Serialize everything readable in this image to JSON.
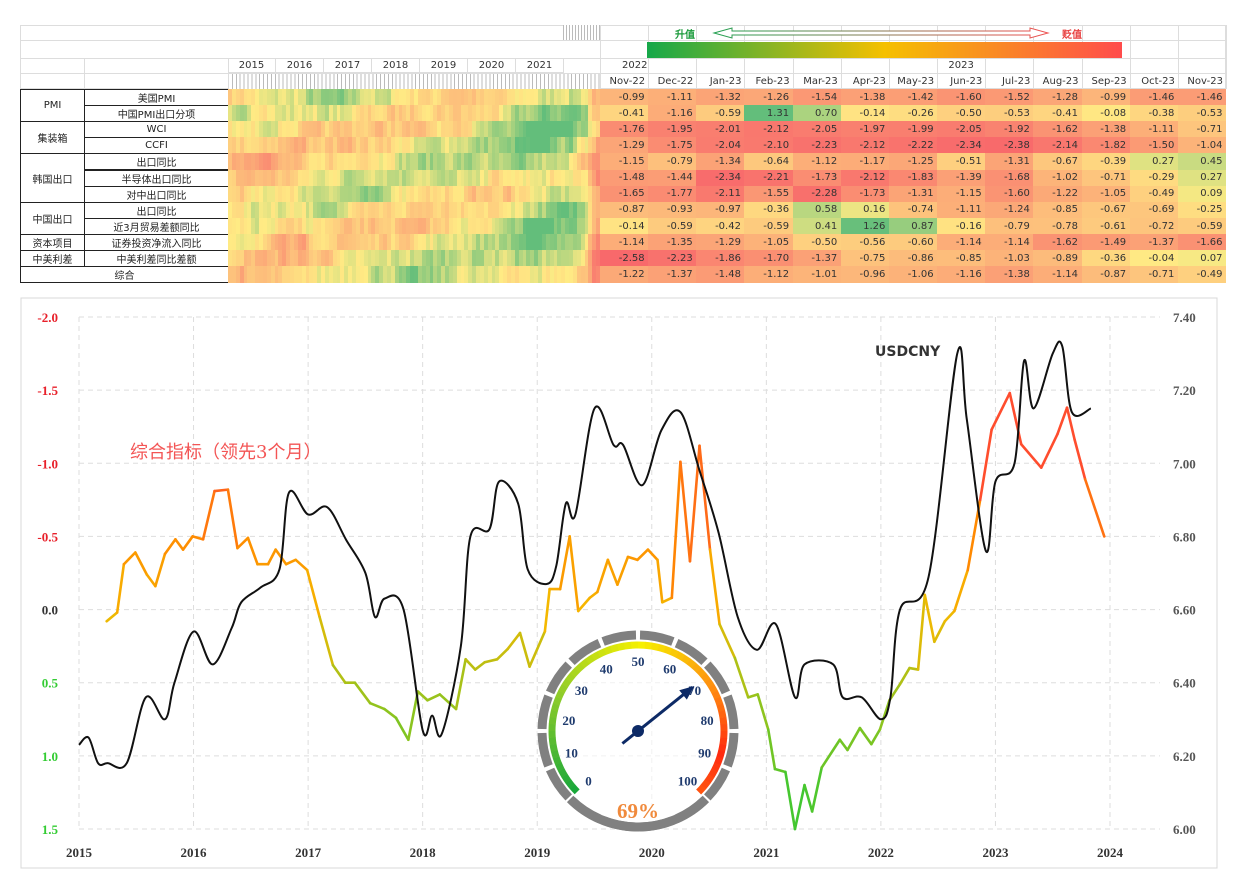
{
  "table": {
    "legend": {
      "appreciate": "升值",
      "depreciate": "贬值"
    },
    "heat_years": [
      "2015",
      "2016",
      "2017",
      "2018",
      "2019",
      "2020",
      "2021"
    ],
    "year_headers": {
      "y2022": "2022",
      "y2023": "2023"
    },
    "months": [
      "Nov-22",
      "Dec-22",
      "Jan-23",
      "Feb-23",
      "Mar-23",
      "Apr-23",
      "May-23",
      "Jun-23",
      "Jul-23",
      "Aug-23",
      "Sep-23",
      "Oct-23",
      "Nov-23"
    ],
    "groups": [
      {
        "label": "PMI",
        "start": 0,
        "span": 2
      },
      {
        "label": "集装箱",
        "start": 2,
        "span": 2
      },
      {
        "label": "韩国出口",
        "start": 4,
        "span": 3
      },
      {
        "label": "中国出口",
        "start": 7,
        "span": 2
      },
      {
        "label": "资本项目",
        "start": 9,
        "span": 1
      },
      {
        "label": "中美利差",
        "start": 10,
        "span": 1
      }
    ],
    "rows": [
      {
        "name": "美国PMI",
        "values": [
          -0.99,
          -1.11,
          -1.32,
          -1.26,
          -1.54,
          -1.38,
          -1.42,
          -1.6,
          -1.52,
          -1.28,
          -0.99,
          -1.46,
          -1.46
        ]
      },
      {
        "name": "中国PMI出口分项",
        "values": [
          -0.41,
          -1.16,
          -0.59,
          1.31,
          0.7,
          -0.14,
          -0.26,
          -0.5,
          -0.53,
          -0.41,
          -0.08,
          -0.38,
          -0.53
        ]
      },
      {
        "name": "WCI",
        "values": [
          -1.76,
          -1.95,
          -2.01,
          -2.12,
          -2.05,
          -1.97,
          -1.99,
          -2.05,
          -1.92,
          -1.62,
          -1.38,
          -1.11,
          -0.71
        ]
      },
      {
        "name": "CCFI",
        "values": [
          -1.29,
          -1.75,
          -2.04,
          -2.1,
          -2.23,
          -2.12,
          -2.22,
          -2.34,
          -2.38,
          -2.14,
          -1.82,
          -1.5,
          -1.04
        ]
      },
      {
        "name": "出口同比",
        "values": [
          -1.15,
          -0.79,
          -1.34,
          -0.64,
          -1.12,
          -1.17,
          -1.25,
          -0.51,
          -1.31,
          -0.67,
          -0.39,
          0.27,
          0.45
        ]
      },
      {
        "name": "半导体出口同比",
        "values": [
          -1.48,
          -1.44,
          -2.34,
          -2.21,
          -1.73,
          -2.12,
          -1.83,
          -1.39,
          -1.68,
          -1.02,
          -0.71,
          -0.29,
          0.27
        ]
      },
      {
        "name": "对中出口同比",
        "values": [
          -1.65,
          -1.77,
          -2.11,
          -1.55,
          -2.28,
          -1.73,
          -1.31,
          -1.15,
          -1.6,
          -1.22,
          -1.05,
          -0.49,
          0.09
        ]
      },
      {
        "name": "出口同比",
        "values": [
          -0.87,
          -0.93,
          -0.97,
          -0.36,
          0.58,
          0.16,
          -0.74,
          -1.11,
          -1.24,
          -0.85,
          -0.67,
          -0.69,
          -0.25
        ]
      },
      {
        "name": "近3月贸易差额同比",
        "values": [
          -0.14,
          -0.59,
          -0.42,
          -0.59,
          0.41,
          1.26,
          0.87,
          -0.16,
          -0.79,
          -0.78,
          -0.61,
          -0.72,
          -0.59
        ]
      },
      {
        "name": "证券投资净流入同比",
        "values": [
          -1.14,
          -1.35,
          -1.29,
          -1.05,
          -0.5,
          -0.56,
          -0.6,
          -1.14,
          -1.14,
          -1.62,
          -1.49,
          -1.37,
          -1.66
        ]
      },
      {
        "name": "中美利差同比差额",
        "values": [
          -2.58,
          -2.23,
          -1.86,
          -1.7,
          -1.37,
          -0.75,
          -0.86,
          -0.85,
          -1.03,
          -0.89,
          -0.36,
          -0.04,
          0.07
        ]
      },
      {
        "name": "综合",
        "values": [
          -1.22,
          -1.37,
          -1.48,
          -1.12,
          -1.01,
          -0.96,
          -1.06,
          -1.16,
          -1.38,
          -1.14,
          -0.87,
          -0.71,
          -0.49
        ]
      }
    ],
    "colors": {
      "low": "#f8696b",
      "mid": "#ffeb84",
      "high": "#63be7b"
    }
  },
  "chart_data": {
    "type": "line",
    "title": "",
    "x_unit": "months since Jan 2015",
    "xticks": [
      "2015",
      "2016",
      "2017",
      "2018",
      "2019",
      "2020",
      "2021",
      "2022",
      "2023",
      "2024"
    ],
    "y_left": {
      "ticks": [
        "-2.0",
        "-1.5",
        "-1.0",
        "-0.5",
        "0.0",
        "0.5",
        "1.0",
        "1.5"
      ],
      "range": [
        -2.0,
        1.5
      ],
      "inverted": true
    },
    "y_right": {
      "ticks": [
        "7.40",
        "7.20",
        "7.00",
        "6.80",
        "6.60",
        "6.40",
        "6.20",
        "6.00"
      ],
      "range": [
        6.0,
        7.4
      ]
    },
    "grid": true,
    "series": [
      {
        "name": "USDCNY",
        "axis": "right",
        "color": "#111111",
        "x": [
          0,
          1,
          2,
          3,
          5,
          7,
          9,
          10,
          12,
          14,
          16,
          17,
          19,
          21,
          22,
          24,
          26,
          28,
          30,
          31,
          32,
          34,
          36,
          37,
          38,
          40,
          41,
          43,
          44,
          46,
          47,
          49,
          50,
          51,
          52,
          54,
          56,
          57,
          59,
          61,
          63,
          65,
          67,
          69,
          71,
          73,
          75,
          76,
          79,
          80,
          82,
          84,
          85,
          86,
          89,
          92,
          93,
          95,
          96,
          98,
          99,
          100,
          102,
          103,
          104,
          106
        ],
        "y": [
          6.23,
          6.25,
          6.18,
          6.18,
          6.18,
          6.36,
          6.3,
          6.4,
          6.54,
          6.45,
          6.55,
          6.62,
          6.66,
          6.71,
          6.92,
          6.86,
          6.88,
          6.79,
          6.7,
          6.58,
          6.63,
          6.6,
          6.27,
          6.31,
          6.26,
          6.5,
          6.8,
          6.82,
          6.95,
          6.89,
          6.71,
          6.67,
          6.72,
          6.89,
          6.86,
          7.15,
          7.05,
          7.05,
          6.94,
          7.09,
          7.14,
          6.98,
          6.81,
          6.58,
          6.49,
          6.56,
          6.36,
          6.45,
          6.45,
          6.36,
          6.36,
          6.3,
          6.36,
          6.6,
          6.69,
          7.3,
          7.12,
          6.76,
          6.95,
          7.0,
          7.28,
          7.15,
          7.3,
          7.32,
          7.14,
          7.15
        ]
      },
      {
        "name": "综合指标（领先3个月）",
        "axis": "left",
        "x": [
          2.9,
          4.0,
          4.7,
          5.9,
          7.1,
          8.0,
          9.0,
          10.1,
          10.9,
          11.9,
          13.0,
          14.2,
          15.6,
          16.6,
          17.7,
          18.7,
          19.8,
          20.6,
          21.7,
          22.7,
          23.9,
          25.2,
          26.6,
          27.9,
          28.9,
          30.5,
          32.0,
          33.2,
          34.5,
          35.5,
          36.5,
          37.8,
          39.5,
          40.5,
          41.5,
          42.5,
          43.8,
          44.9,
          46.2,
          47.2,
          48.8,
          49.3,
          50.4,
          51.4,
          52.3,
          53.5,
          54.3,
          55.4,
          56.4,
          57.5,
          58.5,
          59.6,
          60.6,
          61.1,
          62.1,
          63.0,
          64.0,
          65.0,
          66.1,
          67.1,
          68.7,
          70.1,
          71.1,
          72.2,
          72.9,
          74.0,
          75.0,
          76.0,
          76.8,
          77.8,
          79.7,
          80.5,
          81.8,
          83.0,
          83.9,
          84.9,
          86.0,
          87.0,
          87.9,
          88.6,
          89.6,
          90.7,
          91.7,
          93.1,
          94.4,
          95.6,
          97.5,
          98.7,
          100.8,
          102.5,
          103.5,
          104.3,
          105.4,
          107.4
        ],
        "y": [
          0.08,
          0.02,
          -0.31,
          -0.39,
          -0.24,
          -0.16,
          -0.38,
          -0.48,
          -0.41,
          -0.5,
          -0.48,
          -0.81,
          -0.82,
          -0.42,
          -0.49,
          -0.31,
          -0.31,
          -0.41,
          -0.31,
          -0.34,
          -0.27,
          0.05,
          0.38,
          0.5,
          0.5,
          0.64,
          0.68,
          0.74,
          0.89,
          0.56,
          0.62,
          0.58,
          0.68,
          0.34,
          0.41,
          0.36,
          0.34,
          0.27,
          0.16,
          0.39,
          0.15,
          -0.14,
          -0.14,
          -0.5,
          0.01,
          -0.08,
          -0.12,
          -0.34,
          -0.17,
          -0.36,
          -0.34,
          -0.41,
          -0.34,
          -0.05,
          -0.08,
          -1.01,
          -0.33,
          -1.12,
          -0.41,
          0.1,
          0.33,
          0.6,
          0.58,
          0.82,
          1.09,
          1.11,
          1.5,
          1.2,
          1.38,
          1.08,
          0.89,
          0.96,
          0.81,
          0.92,
          0.82,
          0.62,
          0.51,
          0.4,
          0.41,
          -0.1,
          0.22,
          0.08,
          0.01,
          -0.27,
          -0.75,
          -1.23,
          -1.48,
          -1.13,
          -0.97,
          -1.2,
          -1.38,
          -1.16,
          -0.89,
          -0.5
        ]
      }
    ],
    "annotations": {
      "usdcny": "USDCNY",
      "composite": "综合指标（领先3个月）"
    },
    "gauge": {
      "value": 69,
      "label": "69%",
      "ticks": [
        "0",
        "10",
        "20",
        "30",
        "40",
        "50",
        "60",
        "70",
        "80",
        "90",
        "100"
      ]
    }
  }
}
